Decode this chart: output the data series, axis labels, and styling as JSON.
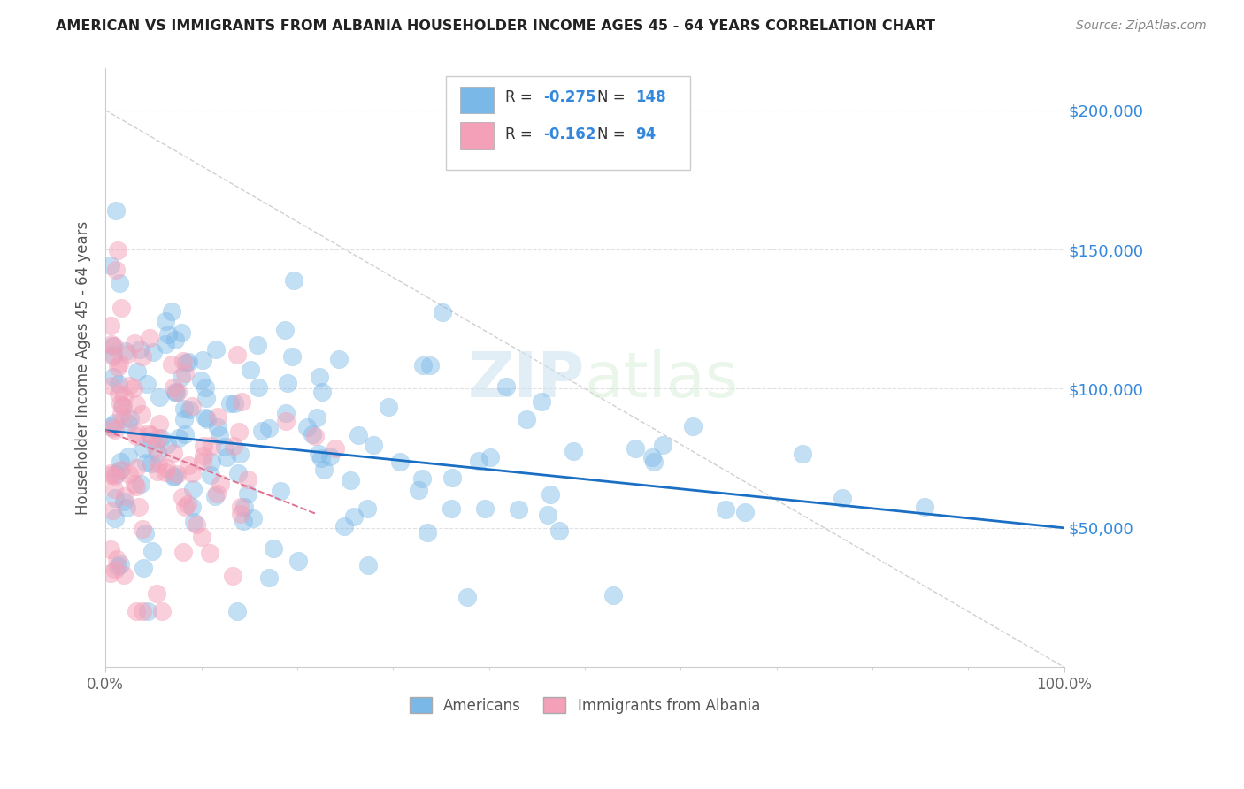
{
  "title": "AMERICAN VS IMMIGRANTS FROM ALBANIA HOUSEHOLDER INCOME AGES 45 - 64 YEARS CORRELATION CHART",
  "source": "Source: ZipAtlas.com",
  "ylabel": "Householder Income Ages 45 - 64 years",
  "xlim": [
    0,
    1
  ],
  "ylim": [
    0,
    215000
  ],
  "yticks": [
    0,
    50000,
    100000,
    150000,
    200000
  ],
  "ytick_labels": [
    "",
    "$50,000",
    "$100,000",
    "$150,000",
    "$200,000"
  ],
  "xtick_positions": [
    0.0,
    1.0
  ],
  "xtick_labels": [
    "0.0%",
    "100.0%"
  ],
  "american_color": "#7ab8e8",
  "albania_color": "#f4a0b8",
  "american_R": -0.275,
  "american_N": 148,
  "albania_R": -0.162,
  "albania_N": 94,
  "background_color": "#ffffff",
  "grid_color": "#e0e0e0",
  "trend_blue": "#1a6fc4",
  "trend_pink": "#e07090",
  "diag_color": "#d0d0d0",
  "watermark_color": "#d8e8f0",
  "american_seed": 7,
  "albania_seed": 13
}
